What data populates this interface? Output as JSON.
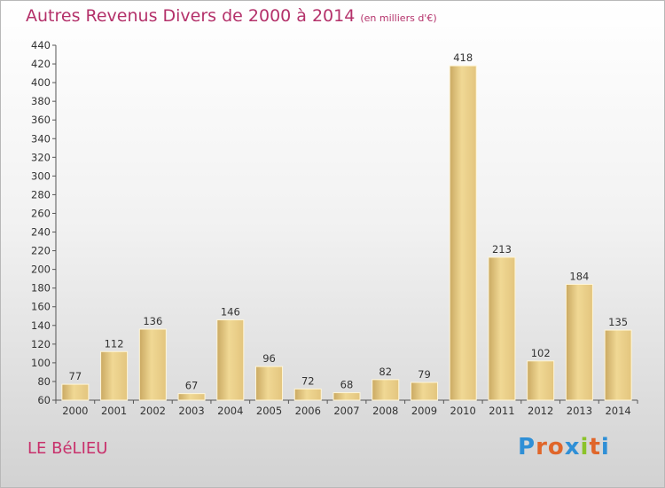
{
  "header": {
    "title": "Autres Revenus Divers de 2000 à 2014",
    "unit_note": "(en milliers d'€)"
  },
  "footer": {
    "commune": "LE BéLIEU",
    "logo_letters": [
      "P",
      "r",
      "o",
      "x",
      "i",
      "t",
      "i"
    ]
  },
  "colors": {
    "title": "#b4316a",
    "bar": "#e7cc84",
    "logo": [
      "#2f8fd6",
      "#e0662a",
      "#e0662a",
      "#2f8fd6",
      "#8bc32a",
      "#e0662a",
      "#2f8fd6"
    ]
  },
  "chart_data": {
    "type": "bar",
    "categories": [
      "2000",
      "2001",
      "2002",
      "2003",
      "2004",
      "2005",
      "2006",
      "2007",
      "2008",
      "2009",
      "2010",
      "2011",
      "2012",
      "2013",
      "2014"
    ],
    "values": [
      77,
      112,
      136,
      67,
      146,
      96,
      72,
      68,
      82,
      79,
      418,
      213,
      102,
      184,
      135
    ],
    "ylim": [
      60,
      440
    ],
    "yticks": [
      60,
      80,
      100,
      120,
      140,
      160,
      180,
      200,
      220,
      240,
      260,
      280,
      300,
      320,
      340,
      360,
      380,
      400,
      420,
      440
    ],
    "grid": false,
    "data_labels": true
  }
}
